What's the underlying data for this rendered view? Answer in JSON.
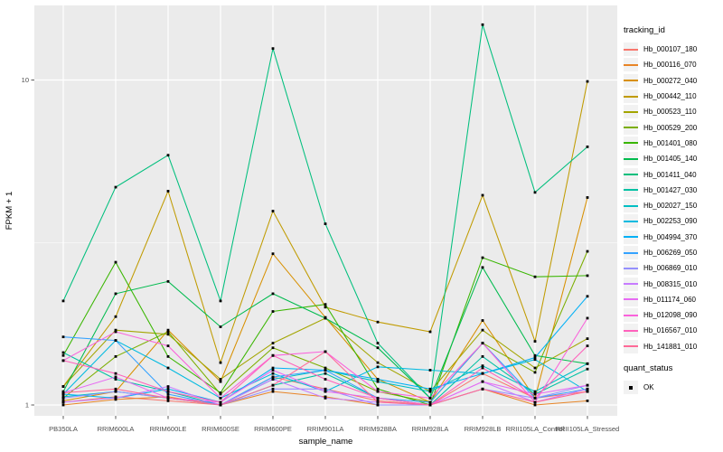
{
  "figure": {
    "background": "#FFFFFF",
    "panel_background": "#EBEBEB",
    "grid_color": "#FFFFFF",
    "tick_color": "#333333",
    "tick_label_color": "#4D4D4D"
  },
  "chart_data": {
    "type": "line",
    "title": "",
    "xlabel": "sample_name",
    "ylabel": "FPKM + 1",
    "y_scale": "log10",
    "ylim": [
      0.93,
      17.0
    ],
    "grid": true,
    "legend_position": "right",
    "y_ticks": [
      {
        "label": "1",
        "value": 1
      },
      {
        "label": "10",
        "value": 10
      }
    ],
    "y_minor_ticks": [
      3.1623
    ],
    "categories": [
      "PB350LA",
      "RRIM600LA",
      "RRIM600LE",
      "RRIM600SE",
      "RRIM600PE",
      "RRIM901LA",
      "RRIM928BA",
      "RRIM928LA",
      "RRIM928LB",
      "RRII105LA_Control",
      "RRII105LA_Stressed"
    ],
    "point_shape": "filled-square",
    "point_color": "#000000",
    "series": [
      {
        "name": "Hb_000107_180",
        "color": "#F8766D",
        "values": [
          1.02,
          1.06,
          1.03,
          1.0,
          1.22,
          1.12,
          1.03,
          1.0,
          1.25,
          1.05,
          1.1
        ]
      },
      {
        "name": "Hb_000116_070",
        "color": "#E88526",
        "values": [
          1.0,
          1.04,
          1.06,
          1.0,
          1.1,
          1.06,
          1.0,
          1.0,
          1.12,
          1.0,
          1.03
        ]
      },
      {
        "name": "Hb_000272_040",
        "color": "#D89000",
        "values": [
          1.03,
          1.1,
          1.7,
          1.18,
          2.92,
          1.86,
          1.2,
          1.02,
          1.82,
          1.05,
          4.35
        ]
      },
      {
        "name": "Hb_000442_110",
        "color": "#C09B00",
        "values": [
          1.14,
          1.87,
          4.55,
          1.35,
          3.95,
          2.0,
          1.8,
          1.68,
          4.42,
          1.57,
          9.9
        ]
      },
      {
        "name": "Hb_000523_110",
        "color": "#A3A500",
        "values": [
          1.14,
          1.7,
          1.65,
          1.2,
          1.55,
          1.85,
          1.35,
          1.1,
          1.7,
          1.3,
          1.6
        ]
      },
      {
        "name": "Hb_000529_200",
        "color": "#7CAE00",
        "values": [
          1.05,
          1.41,
          1.68,
          1.08,
          1.5,
          1.3,
          1.1,
          1.02,
          1.55,
          1.26,
          2.97
        ]
      },
      {
        "name": "Hb_001401_080",
        "color": "#39B600",
        "values": [
          1.42,
          2.75,
          1.41,
          1.09,
          1.94,
          2.04,
          1.12,
          1.0,
          2.84,
          2.48,
          2.5
        ]
      },
      {
        "name": "Hb_001405_140",
        "color": "#00BB4E",
        "values": [
          1.1,
          2.2,
          2.4,
          1.74,
          2.2,
          1.85,
          1.5,
          1.05,
          2.65,
          1.42,
          1.34
        ]
      },
      {
        "name": "Hb_001411_040",
        "color": "#00BF7D",
        "values": [
          2.09,
          4.68,
          5.87,
          2.09,
          12.5,
          3.61,
          1.55,
          1.05,
          14.8,
          4.51,
          6.23
        ]
      },
      {
        "name": "Hb_001427_030",
        "color": "#00C1A3",
        "values": [
          1.45,
          1.2,
          1.1,
          1.0,
          1.15,
          1.25,
          1.05,
          1.0,
          1.41,
          1.08,
          1.29
        ]
      },
      {
        "name": "Hb_002027_150",
        "color": "#00BFC4",
        "values": [
          1.06,
          1.1,
          1.05,
          1.0,
          1.2,
          1.28,
          1.18,
          1.1,
          1.32,
          1.1,
          1.34
        ]
      },
      {
        "name": "Hb_002253_090",
        "color": "#00BAE0",
        "values": [
          1.08,
          1.58,
          1.3,
          1.05,
          1.25,
          1.1,
          1.31,
          1.28,
          1.25,
          1.38,
          1.1
        ]
      },
      {
        "name": "Hb_004994_370",
        "color": "#00B0F6",
        "values": [
          1.08,
          1.05,
          1.12,
          1.02,
          1.3,
          1.28,
          1.2,
          1.12,
          1.25,
          1.4,
          2.16
        ]
      },
      {
        "name": "Hb_006269_050",
        "color": "#35A2FF",
        "values": [
          1.62,
          1.58,
          1.08,
          1.0,
          1.22,
          1.28,
          1.05,
          1.02,
          1.55,
          1.05,
          1.12
        ]
      },
      {
        "name": "Hb_006869_010",
        "color": "#9590FF",
        "values": [
          1.05,
          1.1,
          1.05,
          1.0,
          1.12,
          1.12,
          1.0,
          1.0,
          1.12,
          1.05,
          1.15
        ]
      },
      {
        "name": "Hb_008315_010",
        "color": "#C77CFF",
        "values": [
          1.02,
          1.05,
          1.14,
          1.0,
          1.2,
          1.05,
          1.02,
          1.0,
          1.18,
          1.02,
          1.12
        ]
      },
      {
        "name": "Hb_011174_060",
        "color": "#E76BF3",
        "values": [
          1.09,
          1.22,
          1.05,
          1.02,
          1.28,
          1.1,
          1.05,
          1.0,
          1.18,
          1.08,
          1.15
        ]
      },
      {
        "name": "Hb_012098_090",
        "color": "#FA62DB",
        "values": [
          1.37,
          1.68,
          1.52,
          1.05,
          1.42,
          1.46,
          1.1,
          1.05,
          1.55,
          1.02,
          1.85
        ]
      },
      {
        "name": "Hb_016567_010",
        "color": "#FF62BC",
        "values": [
          1.37,
          1.25,
          1.1,
          1.02,
          1.42,
          1.2,
          1.05,
          1.0,
          1.3,
          1.05,
          1.52
        ]
      },
      {
        "name": "Hb_141881_010",
        "color": "#FF6A98",
        "values": [
          1.09,
          1.12,
          1.05,
          1.0,
          1.15,
          1.46,
          1.02,
          1.0,
          1.12,
          1.02,
          1.1
        ]
      }
    ],
    "legend_tracking": {
      "title": "tracking_id"
    },
    "legend_quant": {
      "title": "quant_status",
      "items": [
        {
          "label": "OK"
        }
      ]
    }
  }
}
